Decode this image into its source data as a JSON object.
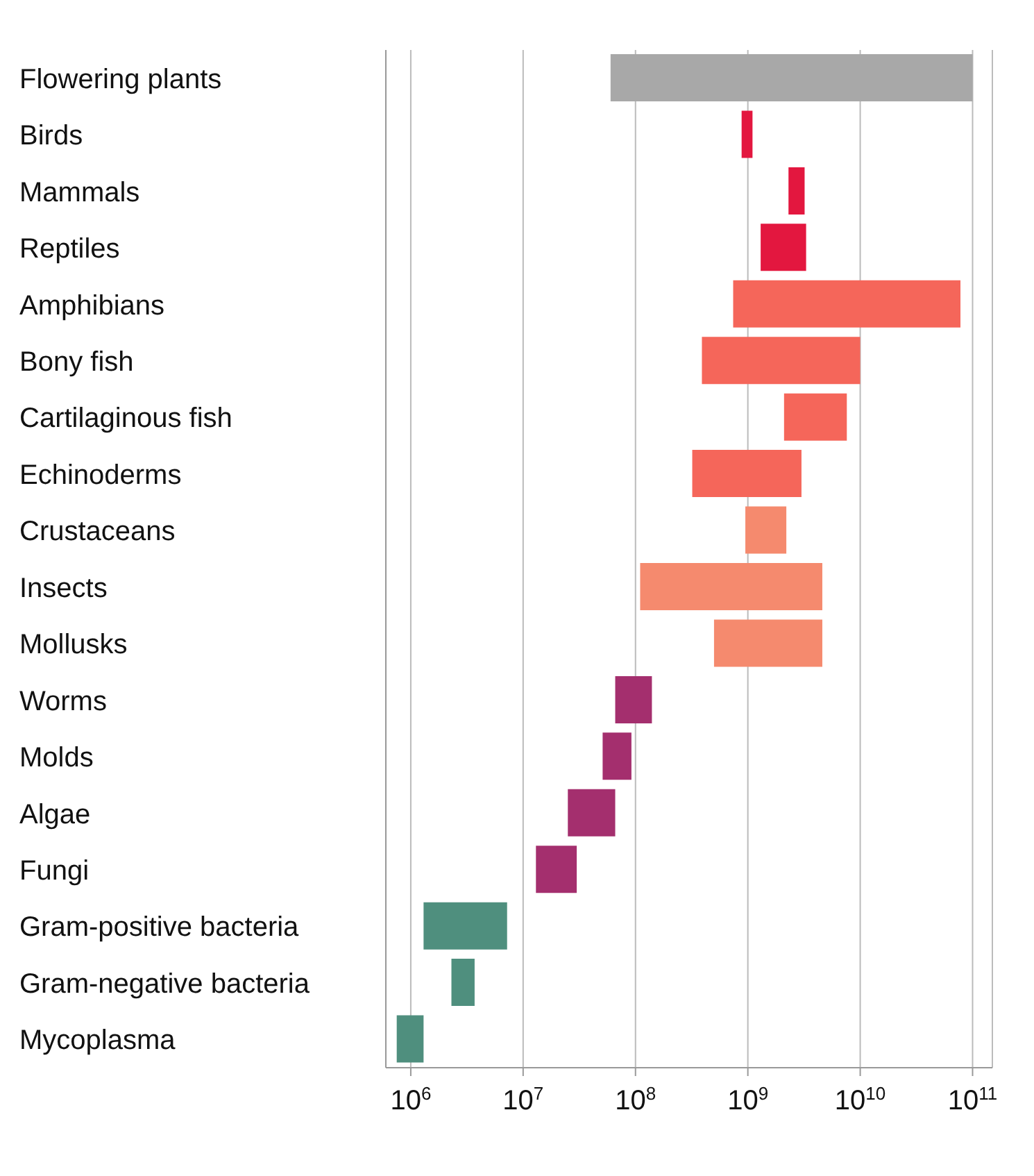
{
  "chart_data": {
    "type": "bar",
    "orientation": "horizontal",
    "log": "x",
    "grid": "x",
    "legend": false,
    "categories": [
      "Flowering plants",
      "Birds",
      "Mammals",
      "Reptiles",
      "Amphibians",
      "Bony fish",
      "Cartilaginous fish",
      "Echinoderms",
      "Crustaceans",
      "Insects",
      "Mollusks",
      "Worms",
      "Molds",
      "Algae",
      "Fungi",
      "Gram-positive bacteria",
      "Gram-negative bacteria",
      "Mycoplasma"
    ],
    "base": [
      60000000,
      880000000,
      2300000000,
      1300000000,
      740000000,
      390000000,
      2100000000,
      320000000,
      950000000,
      110000000,
      500000000,
      66000000,
      51000000,
      25000000,
      13000000,
      1300000,
      2300000,
      750000
    ],
    "values": [
      99940000000,
      220000000,
      900000000,
      2000000000,
      77260000000,
      9610000000,
      5500000000,
      2680000000,
      1250000000,
      4490000000,
      4100000000,
      74000000,
      41000000,
      41000000,
      17000000,
      5900000,
      1400000,
      550000
    ],
    "colors": [
      "#a8a8a8",
      "#e3173f",
      "#e3173f",
      "#e3173f",
      "#f5665a",
      "#f5665a",
      "#f5665a",
      "#f5665a",
      "#f58a6e",
      "#f58a6e",
      "#f58a6e",
      "#a42f6e",
      "#a42f6e",
      "#a42f6e",
      "#a42f6e",
      "#4f8f7e",
      "#4f8f7e",
      "#4f8f7e"
    ],
    "xlim": [
      600000,
      150000000000
    ],
    "xticks": [
      {
        "value": 1000000,
        "label": "10$^{6}$"
      },
      {
        "value": 10000000,
        "label": "10$^{7}$"
      },
      {
        "value": 100000000,
        "label": "10$^{8}$"
      },
      {
        "value": 1000000000,
        "label": "10$^{9}$"
      },
      {
        "value": 10000000000,
        "label": "10$^{10}$"
      },
      {
        "value": 100000000000,
        "label": "10$^{11}$"
      }
    ]
  }
}
